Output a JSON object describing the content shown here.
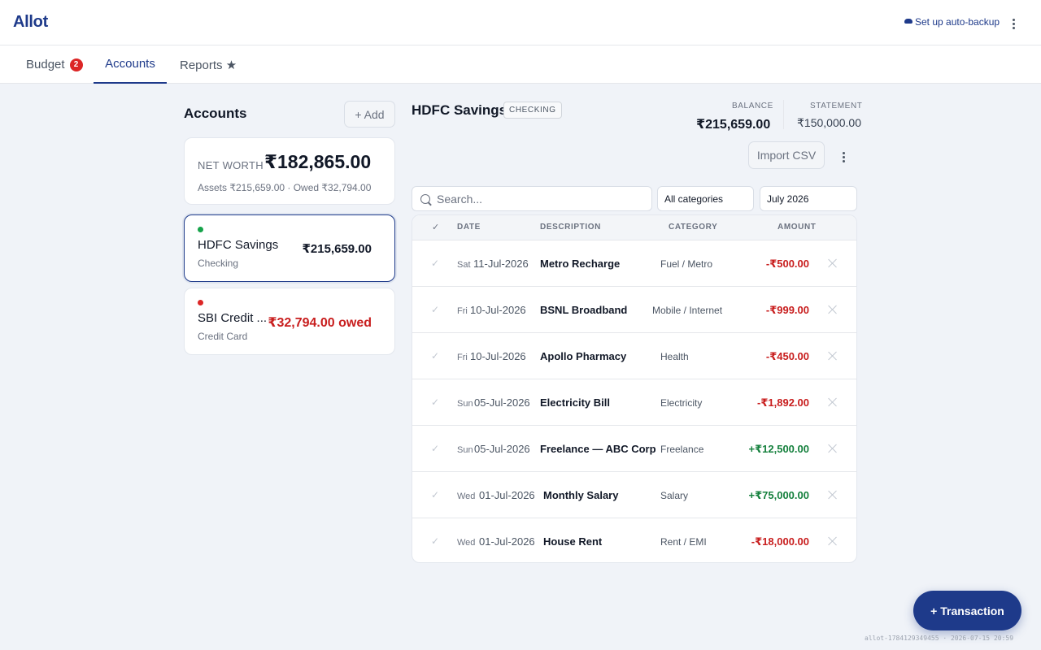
{
  "app": {
    "title": "Allot"
  },
  "header": {
    "backup_label": "Set up auto-backup"
  },
  "tabs": [
    {
      "label": "Budget",
      "badge": "2"
    },
    {
      "label": "Accounts"
    },
    {
      "label": "Reports ★"
    }
  ],
  "sidebar": {
    "heading": "Accounts",
    "add_label": "+ Add",
    "net_worth": {
      "label": "NET WORTH",
      "value": "₹182,865.00",
      "sub": "Assets ₹215,659.00 · Owed ₹32,794.00"
    },
    "accounts": [
      {
        "name": "HDFC Savings",
        "type": "Checking",
        "balance": "₹215,659.00",
        "dot_color": "#16a34a"
      },
      {
        "name": "SBI Credit ...",
        "type": "Credit Card",
        "balance": "₹32,794.00 owed",
        "dot_color": "#dc2626"
      }
    ]
  },
  "detail": {
    "title": "HDFC Savings",
    "type_pill": "CHECKING",
    "balance_label": "BALANCE",
    "balance_value": "₹215,659.00",
    "statement_label": "STATEMENT",
    "statement_value": "₹150,000.00",
    "import_label": "Import CSV",
    "search_placeholder": "Search...",
    "category_filter": "All categories",
    "month_filter": "July 2026"
  },
  "table": {
    "headers": {
      "check": "✓",
      "date": "DATE",
      "description": "DESCRIPTION",
      "category": "CATEGORY",
      "amount": "AMOUNT"
    },
    "rows": [
      {
        "dow": "Sat",
        "date": "11-Jul-2026",
        "description": "Metro Recharge",
        "category": "Fuel / Metro",
        "amount": "-₹500.00",
        "sign": "neg"
      },
      {
        "dow": "Fri",
        "date": "10-Jul-2026",
        "description": "BSNL Broadband",
        "category": "Mobile / Internet",
        "amount": "-₹999.00",
        "sign": "neg"
      },
      {
        "dow": "Fri",
        "date": "10-Jul-2026",
        "description": "Apollo Pharmacy",
        "category": "Health",
        "amount": "-₹450.00",
        "sign": "neg"
      },
      {
        "dow": "Sun",
        "date": "05-Jul-2026",
        "description": "Electricity Bill",
        "category": "Electricity",
        "amount": "-₹1,892.00",
        "sign": "neg"
      },
      {
        "dow": "Sun",
        "date": "05-Jul-2026",
        "description": "Freelance — ABC Corp",
        "category": "Freelance",
        "amount": "+₹12,500.00",
        "sign": "pos"
      },
      {
        "dow": "Wed",
        "date": "01-Jul-2026",
        "description": "Monthly Salary",
        "category": "Salary",
        "amount": "+₹75,000.00",
        "sign": "pos"
      },
      {
        "dow": "Wed",
        "date": "01-Jul-2026",
        "description": "House Rent",
        "category": "Rent / EMI",
        "amount": "-₹18,000.00",
        "sign": "neg"
      }
    ]
  },
  "fab_label": "+ Transaction",
  "footer": "allot-1784129349455 · 2026-07-15 20:59"
}
